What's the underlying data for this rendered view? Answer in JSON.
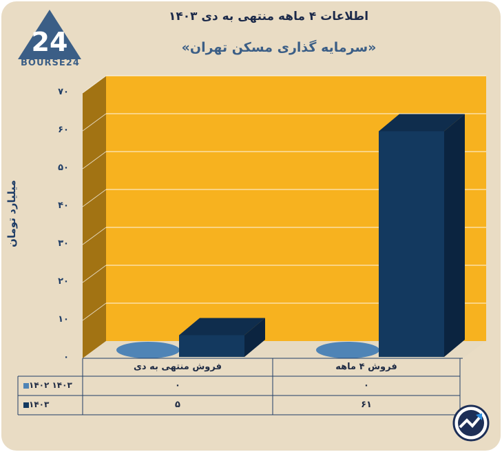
{
  "header": {
    "title": "اطلاعات ۴ ماهه منتهی به دی ۱۴۰۳",
    "subtitle": "«سرمایه گذاری مسکن تهران»",
    "logo_text": "BOURSE24",
    "logo_mark": "24"
  },
  "colors": {
    "plot_bg": "#f7b21f",
    "side_wall": "#a27313",
    "series_1402": "#4f84b6",
    "series_1403": "#13395f",
    "frame_bg": "#e9dcc4"
  },
  "chart_data": {
    "type": "bar",
    "title": "اطلاعات ۴ ماهه منتهی به دی ۱۴۰۳",
    "subtitle": "«سرمایه گذاری مسکن تهران»",
    "ylabel": "میلیارد تومان",
    "ylim": [
      0,
      70
    ],
    "yticks": [
      "۰",
      "۱۰",
      "۲۰",
      "۳۰",
      "۴۰",
      "۵۰",
      "۶۰",
      "۷۰"
    ],
    "ytick_values": [
      0,
      10,
      20,
      30,
      40,
      50,
      60,
      70
    ],
    "categories": [
      "فروش منتهی به دی",
      "فروش ۴ ماهه"
    ],
    "series": [
      {
        "name": "۱۴۰۲ ۱۴۰۳",
        "values": [
          0,
          0
        ],
        "labels": [
          "۰",
          "۰"
        ]
      },
      {
        "name": "۱۴۰۳",
        "values": [
          5,
          61
        ],
        "labels": [
          "۵",
          "۶۱"
        ]
      }
    ],
    "grid": true,
    "legend_position": "table-left",
    "three_d": true
  },
  "icons": {
    "brand": "trend-arrow-icon"
  }
}
